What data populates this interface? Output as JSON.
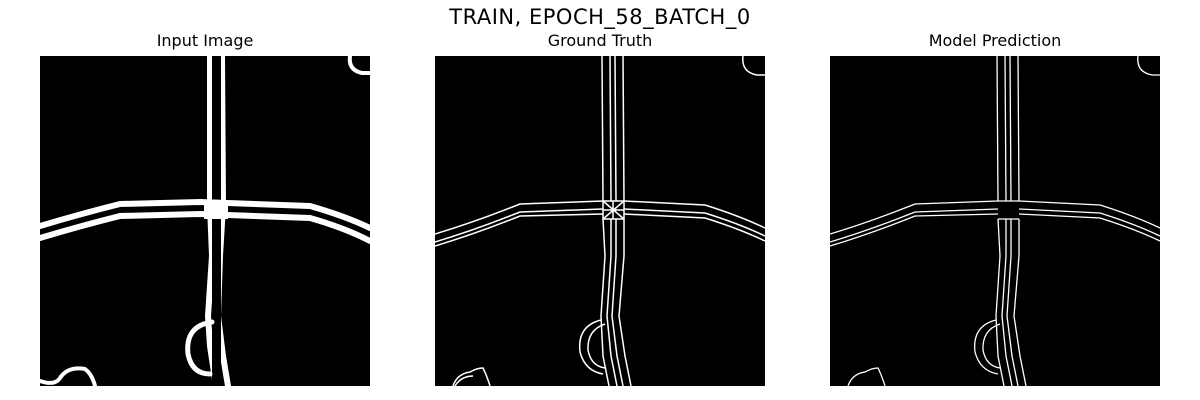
{
  "figure": {
    "title": "TRAIN, EPOCH_58_BATCH_0"
  },
  "panels": [
    {
      "title": "Input Image",
      "style": "thick"
    },
    {
      "title": "Ground Truth",
      "style": "outline-grid"
    },
    {
      "title": "Model Prediction",
      "style": "outline"
    }
  ],
  "colors": {
    "background": "#000000",
    "foreground": "#ffffff",
    "page": "#ffffff"
  }
}
